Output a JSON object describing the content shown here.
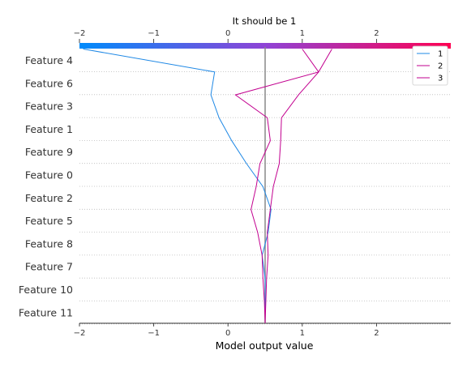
{
  "chart_data": {
    "type": "line",
    "title": "It should be 1",
    "xlabel": "Model output value",
    "ylabel": "",
    "xlim": [
      -2,
      3
    ],
    "xticks": [
      -2,
      -1,
      0,
      1,
      2
    ],
    "xtick_labels": [
      "−2",
      "−1",
      "0",
      "1",
      "2"
    ],
    "base_value": 0.5,
    "features": [
      "Feature 4",
      "Feature 6",
      "Feature 3",
      "Feature 1",
      "Feature 9",
      "Feature 0",
      "Feature 2",
      "Feature 5",
      "Feature 8",
      "Feature 7",
      "Feature 10",
      "Feature 11"
    ],
    "grid": "dotted horizontal",
    "legend_position": "top-right",
    "colorbar": {
      "from": "#008bfb",
      "mid": "#8f43d6",
      "to": "#ff0052"
    },
    "series": [
      {
        "name": "1",
        "color": "#1e88e5",
        "values": [
          -1.95,
          -0.18,
          -0.23,
          -0.12,
          0.05,
          0.25,
          0.47,
          0.58,
          0.54,
          0.46,
          0.5,
          0.5,
          0.5
        ]
      },
      {
        "name": "2",
        "color": "#c2008f",
        "values": [
          1.4,
          1.22,
          0.1,
          0.53,
          0.57,
          0.43,
          0.38,
          0.31,
          0.4,
          0.46,
          0.47,
          0.49,
          0.5
        ]
      },
      {
        "name": "3",
        "color": "#c2008f",
        "values": [
          1.0,
          1.22,
          0.95,
          0.72,
          0.71,
          0.69,
          0.61,
          0.57,
          0.53,
          0.54,
          0.52,
          0.51,
          0.5
        ]
      }
    ]
  }
}
